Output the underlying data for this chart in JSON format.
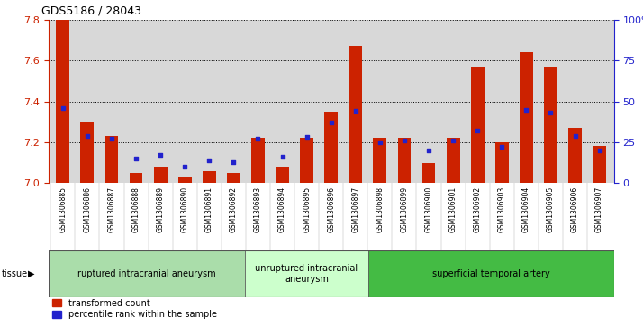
{
  "title": "GDS5186 / 28043",
  "samples": [
    "GSM1306885",
    "GSM1306886",
    "GSM1306887",
    "GSM1306888",
    "GSM1306889",
    "GSM1306890",
    "GSM1306891",
    "GSM1306892",
    "GSM1306893",
    "GSM1306894",
    "GSM1306895",
    "GSM1306896",
    "GSM1306897",
    "GSM1306898",
    "GSM1306899",
    "GSM1306900",
    "GSM1306901",
    "GSM1306902",
    "GSM1306903",
    "GSM1306904",
    "GSM1306905",
    "GSM1306906",
    "GSM1306907"
  ],
  "transformed_count": [
    7.8,
    7.3,
    7.23,
    7.05,
    7.08,
    7.03,
    7.06,
    7.05,
    7.22,
    7.08,
    7.22,
    7.35,
    7.67,
    7.22,
    7.22,
    7.1,
    7.22,
    7.57,
    7.2,
    7.64,
    7.57,
    7.27,
    7.18
  ],
  "percentile_rank": [
    46,
    29,
    27,
    15,
    17,
    10,
    14,
    13,
    27,
    16,
    28,
    37,
    44,
    25,
    26,
    20,
    26,
    32,
    22,
    45,
    43,
    29,
    20
  ],
  "ylim_left": [
    7.0,
    7.8
  ],
  "ylim_right": [
    0,
    100
  ],
  "yticks_left": [
    7.0,
    7.2,
    7.4,
    7.6,
    7.8
  ],
  "yticks_right": [
    0,
    25,
    50,
    75,
    100
  ],
  "ytick_labels_right": [
    "0",
    "25",
    "50",
    "75",
    "100%"
  ],
  "bar_color": "#cc2200",
  "dot_color": "#2222cc",
  "bg_color": "#d8d8d8",
  "groups": [
    {
      "label": "ruptured intracranial aneurysm",
      "start": 0,
      "end": 8,
      "color": "#aaddaa"
    },
    {
      "label": "unruptured intracranial\naneurysm",
      "start": 8,
      "end": 13,
      "color": "#ccffcc"
    },
    {
      "label": "superficial temporal artery",
      "start": 13,
      "end": 23,
      "color": "#44bb44"
    }
  ]
}
